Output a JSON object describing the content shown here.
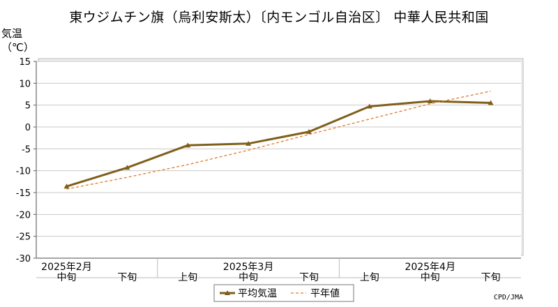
{
  "title": "東ウジムチン旗（烏利安斯太）〔内モンゴル自治区〕 中華人民共和国",
  "ylabel_line1": "気温",
  "ylabel_line2": "（℃）",
  "credit": "CPD/JMA",
  "colors": {
    "series_mean": "#7f5f1a",
    "series_normal": "#e07a2a",
    "grid": "#c8c8c8",
    "frame": "#888888"
  },
  "chart_data": {
    "type": "line",
    "categories": [
      "中旬",
      "下旬",
      "上旬",
      "中旬",
      "下旬",
      "上旬",
      "中旬",
      "下旬"
    ],
    "month_labels": [
      {
        "label": "2025年2月",
        "under_index": 0
      },
      {
        "label": "2025年3月",
        "under_index": 3
      },
      {
        "label": "2025年4月",
        "under_index": 6
      }
    ],
    "ylim": [
      -30,
      15
    ],
    "yticks": [
      15,
      10,
      5,
      0,
      -5,
      -10,
      -15,
      -20,
      -25,
      -30
    ],
    "series": [
      {
        "name": "平均気温",
        "style": "solid-with-markers",
        "values": [
          -13.6,
          -9.3,
          -4.2,
          -3.8,
          -1.1,
          4.7,
          5.9,
          5.5
        ]
      },
      {
        "name": "平年値",
        "style": "dashed",
        "values": [
          -14.2,
          -11.5,
          -8.6,
          -5.3,
          -1.7,
          1.8,
          5.3,
          8.2
        ]
      }
    ],
    "grid": true,
    "legend_position": "bottom-center"
  }
}
